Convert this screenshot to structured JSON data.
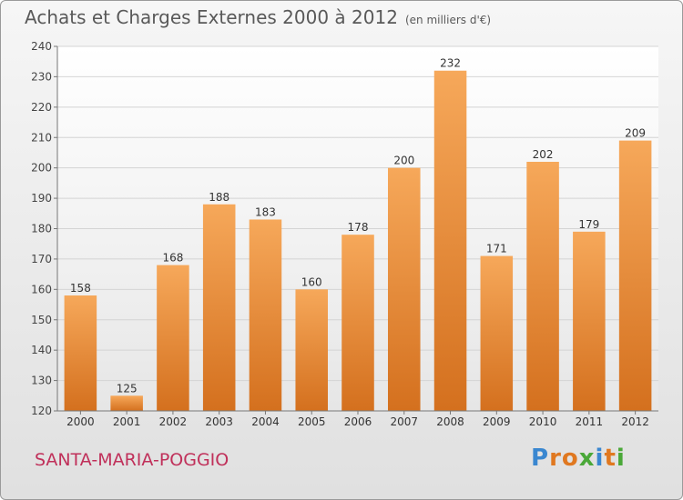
{
  "title": "Achats et Charges Externes 2000 à 2012",
  "subtitle": "(en milliers d'€)",
  "commune": "SANTA-MARIA-POGGIO",
  "logo": "Proxiti",
  "colors": {
    "bar_light": "#f6a85a",
    "bar_dark": "#d4701e",
    "commune": "#c0305a",
    "logo_letters": [
      "#3a87d0",
      "#e07820",
      "#e07820",
      "#4aa838",
      "#3a87d0",
      "#e07820",
      "#4aa838"
    ]
  },
  "chart_data": {
    "type": "bar",
    "title": "Achats et Charges Externes 2000 à 2012",
    "subtitle": "(en milliers d'€)",
    "categories": [
      "2000",
      "2001",
      "2002",
      "2003",
      "2004",
      "2005",
      "2006",
      "2007",
      "2008",
      "2009",
      "2010",
      "2011",
      "2012"
    ],
    "values": [
      158,
      125,
      168,
      188,
      183,
      160,
      178,
      200,
      232,
      171,
      202,
      179,
      209
    ],
    "ylim": [
      120,
      240
    ],
    "yticks": [
      120,
      130,
      140,
      150,
      160,
      170,
      180,
      190,
      200,
      210,
      220,
      230,
      240
    ],
    "grid": true,
    "legend": "none"
  }
}
